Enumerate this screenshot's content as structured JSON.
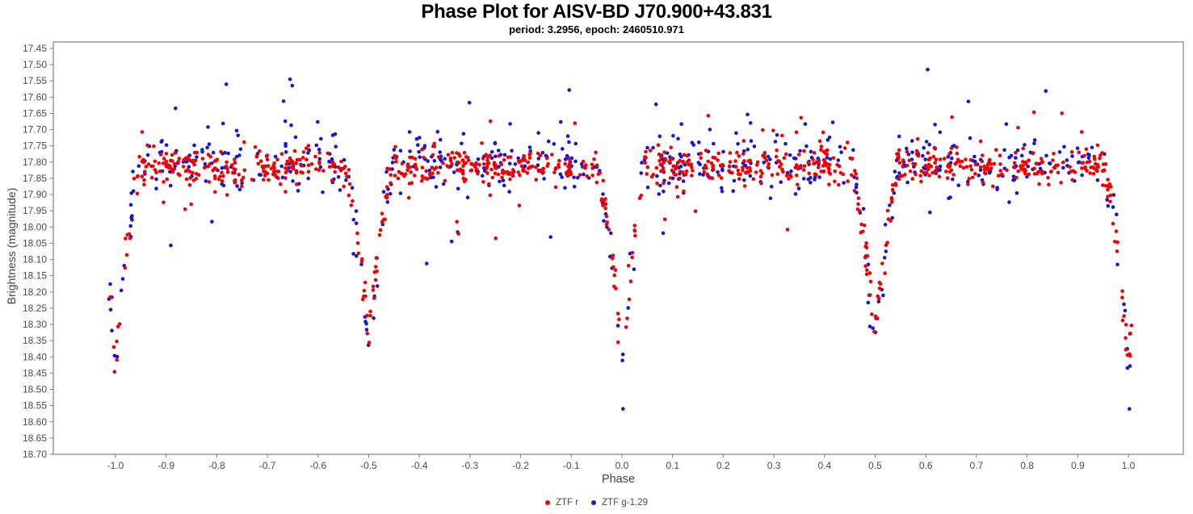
{
  "header": {
    "title": "Phase Plot for AISV-BD J70.900+43.831",
    "subtitle": "period: 3.2956, epoch: 2460510.971"
  },
  "axes": {
    "x_label": "Phase",
    "y_label": "Brightness (magnitude)"
  },
  "legend": {
    "items": [
      {
        "label": "ZTF r",
        "color": "#f40000"
      },
      {
        "label": "ZTF g-1.29",
        "color": "#1616d9"
      }
    ]
  },
  "colors": {
    "axis_line": "#808080",
    "tick_label": "#4a4a4a"
  },
  "chart_data": {
    "type": "scatter",
    "title": "Phase Plot for AISV-BD J70.900+43.831",
    "subtitle": "period: 3.2956, epoch: 2460510.971",
    "xlabel": "Phase",
    "ylabel": "Brightness (magnitude)",
    "xlim": [
      -1.123,
      1.108
    ],
    "ylim": [
      17.43,
      18.7
    ],
    "y_axis_inverted": true,
    "grid": false,
    "legend_position": "bottom-center",
    "x_ticks": [
      "-1.0",
      "-0.9",
      "-0.8",
      "-0.7",
      "-0.6",
      "-0.5",
      "-0.4",
      "-0.3",
      "-0.2",
      "-0.1",
      "0.0",
      "0.1",
      "0.2",
      "0.3",
      "0.4",
      "0.5",
      "0.6",
      "0.7",
      "0.8",
      "0.9",
      "1.0"
    ],
    "y_ticks": [
      "17.45",
      "17.50",
      "17.55",
      "17.60",
      "17.65",
      "17.70",
      "17.75",
      "17.80",
      "17.85",
      "17.90",
      "17.95",
      "18.00",
      "18.05",
      "18.10",
      "18.15",
      "18.20",
      "18.25",
      "18.30",
      "18.35",
      "18.40",
      "18.45",
      "18.50",
      "18.55",
      "18.60",
      "18.65",
      "18.70"
    ],
    "seed": 20231107,
    "description": "Eclipsing-binary phase-folded light curve, data plotted over two cycles (phase -1 to +1). Out-of-eclipse brightness ~17.80 mag; primary minima at phase -1, 0, +1 reaching ~18.41 mag (one ZTF g point at 18.56); secondary minima at phase -0.5, +0.5 reaching ~18.33-18.38 mag.",
    "series": [
      {
        "name": "ZTF r",
        "color": "#f40000",
        "marker_radius": 2.3,
        "n": 980,
        "phase_range": [
          -1.013,
          1.007
        ],
        "baseline_mag": 17.815,
        "noise_sigma": 0.027,
        "bright_outlier": {
          "rate": 0.015,
          "min": 0.04,
          "max": 0.16
        },
        "faint_outlier": {
          "rate": 0.02,
          "min": 0.05,
          "max": 0.22
        },
        "primary_eclipse": {
          "centers": [
            -1.0,
            0.0,
            1.0
          ],
          "depth": 0.6,
          "half_width": 0.05
        },
        "secondary_eclipse": {
          "centers": [
            -0.5,
            0.5
          ],
          "depth": 0.52,
          "half_width": 0.05
        },
        "extra_points": []
      },
      {
        "name": "ZTF g-1.29",
        "color": "#1616d9",
        "marker_radius": 2.3,
        "n": 600,
        "phase_range": [
          -1.013,
          1.007
        ],
        "baseline_mag": 17.805,
        "noise_sigma": 0.046,
        "bright_outlier": {
          "rate": 0.055,
          "min": 0.05,
          "max": 0.26
        },
        "faint_outlier": {
          "rate": 0.025,
          "min": 0.06,
          "max": 0.25
        },
        "primary_eclipse": {
          "centers": [
            -1.0,
            0.0,
            1.0
          ],
          "depth": 0.6,
          "half_width": 0.05
        },
        "secondary_eclipse": {
          "centers": [
            -0.5,
            0.5
          ],
          "depth": 0.57,
          "half_width": 0.05
        },
        "extra_points": [
          {
            "phase": 0.002,
            "mag": 18.56
          },
          {
            "phase": 1.002,
            "mag": 18.56
          }
        ]
      }
    ]
  }
}
